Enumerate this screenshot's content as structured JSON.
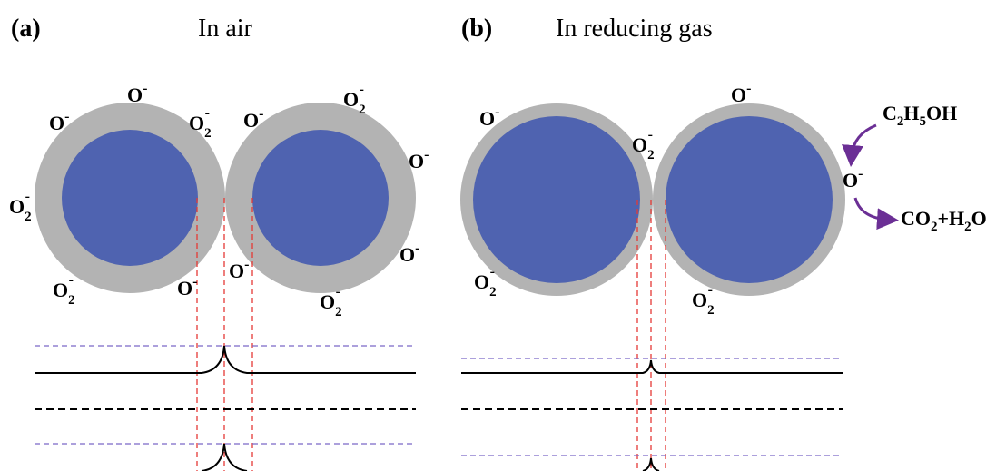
{
  "panels": [
    {
      "letter": "(a)",
      "title": "In air",
      "ions": [
        {
          "symbol": "O",
          "charge": "-"
        },
        {
          "symbol": "O",
          "charge": "-"
        },
        {
          "symbol": "O",
          "sub": "2",
          "charge": "-"
        },
        {
          "symbol": "O",
          "charge": "-"
        },
        {
          "symbol": "O",
          "sub": "2",
          "charge": "-"
        },
        {
          "symbol": "O",
          "charge": "-"
        },
        {
          "symbol": "O",
          "sub": "2",
          "charge": "-"
        },
        {
          "symbol": "O",
          "charge": "-"
        },
        {
          "symbol": "O",
          "sub": "2",
          "charge": "-"
        },
        {
          "symbol": "O",
          "charge": "-"
        },
        {
          "symbol": "O",
          "charge": "-"
        },
        {
          "symbol": "O",
          "sub": "2",
          "charge": "-"
        }
      ]
    },
    {
      "letter": "(b)",
      "title": "In reducing gas",
      "ions": [
        {
          "symbol": "O",
          "charge": "-"
        },
        {
          "symbol": "O",
          "charge": "-"
        },
        {
          "symbol": "O",
          "sub": "2",
          "charge": "-"
        },
        {
          "symbol": "O",
          "charge": "-"
        },
        {
          "symbol": "O",
          "sub": "2",
          "charge": "-"
        },
        {
          "symbol": "O",
          "sub": "2",
          "charge": "-"
        }
      ],
      "reactant": [
        {
          "text": "C"
        },
        {
          "text": "2",
          "sub": true
        },
        {
          "text": "H"
        },
        {
          "text": "5",
          "sub": true
        },
        {
          "text": "OH"
        }
      ],
      "product": [
        {
          "text": "CO"
        },
        {
          "text": "2",
          "sub": true
        },
        {
          "text": "+H"
        },
        {
          "text": "2",
          "sub": true
        },
        {
          "text": "O"
        }
      ]
    }
  ]
}
